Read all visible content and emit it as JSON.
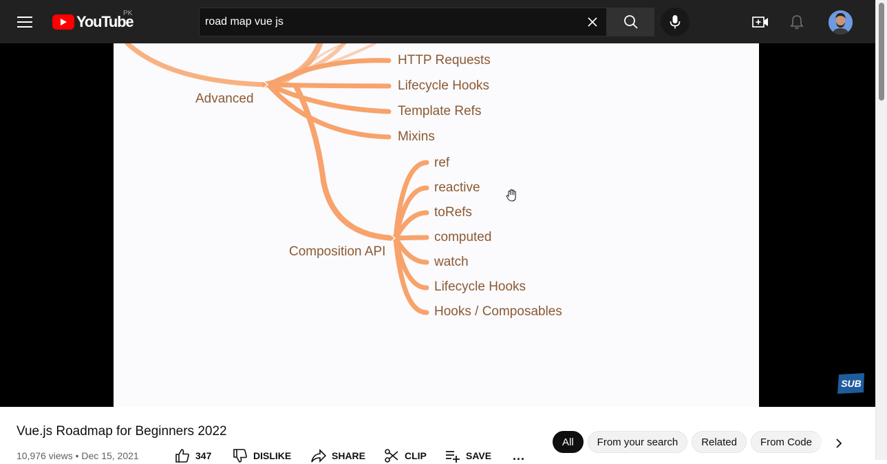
{
  "header": {
    "logo_text": "YouTube",
    "country_code": "PK",
    "search_value": "road map vue js",
    "icons": [
      "menu-icon",
      "close-icon",
      "search-icon",
      "mic-icon",
      "create-video-icon",
      "bell-icon",
      "avatar"
    ]
  },
  "video": {
    "mindmap": {
      "advanced": {
        "label": "Advanced",
        "children": [
          "HTTP Requests",
          "Lifecycle Hooks",
          "Template Refs",
          "Mixins"
        ]
      },
      "composition": {
        "label": "Composition API",
        "children": [
          "ref",
          "reactive",
          "toRefs",
          "computed",
          "watch",
          "Lifecycle Hooks",
          "Hooks / Composables"
        ]
      }
    },
    "branch_color": "#f7a36b",
    "text_color": "#8a5a33",
    "sub_badge": "SUB"
  },
  "details": {
    "title": "Vue.js Roadmap for Beginners 2022",
    "views": "10,976 views",
    "date": "Dec 15, 2021",
    "likes": "347",
    "dislike_label": "DISLIKE",
    "share_label": "SHARE",
    "clip_label": "CLIP",
    "save_label": "SAVE",
    "more_label": "..."
  },
  "chips": [
    "All",
    "From your search",
    "Related",
    "From Code"
  ]
}
